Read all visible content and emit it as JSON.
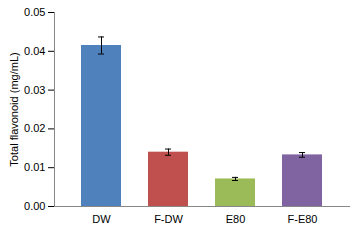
{
  "chart_data": {
    "type": "bar",
    "y_label": "Total flavonoid (mg/mL)",
    "categories": [
      "DW",
      "F-DW",
      "E80",
      "F-E80"
    ],
    "values": [
      0.0415,
      0.014,
      0.0071,
      0.0133
    ],
    "errors": [
      0.0022,
      0.0008,
      0.0004,
      0.0006
    ],
    "colors": [
      "#4f81bd",
      "#c0504d",
      "#9bbb59",
      "#8064a2"
    ],
    "ylim": [
      0,
      0.05
    ],
    "yticks": [
      {
        "value": 0,
        "label": "0.00"
      },
      0.01,
      0.02,
      0.03,
      0.04,
      0.05
    ],
    "grid": false
  }
}
